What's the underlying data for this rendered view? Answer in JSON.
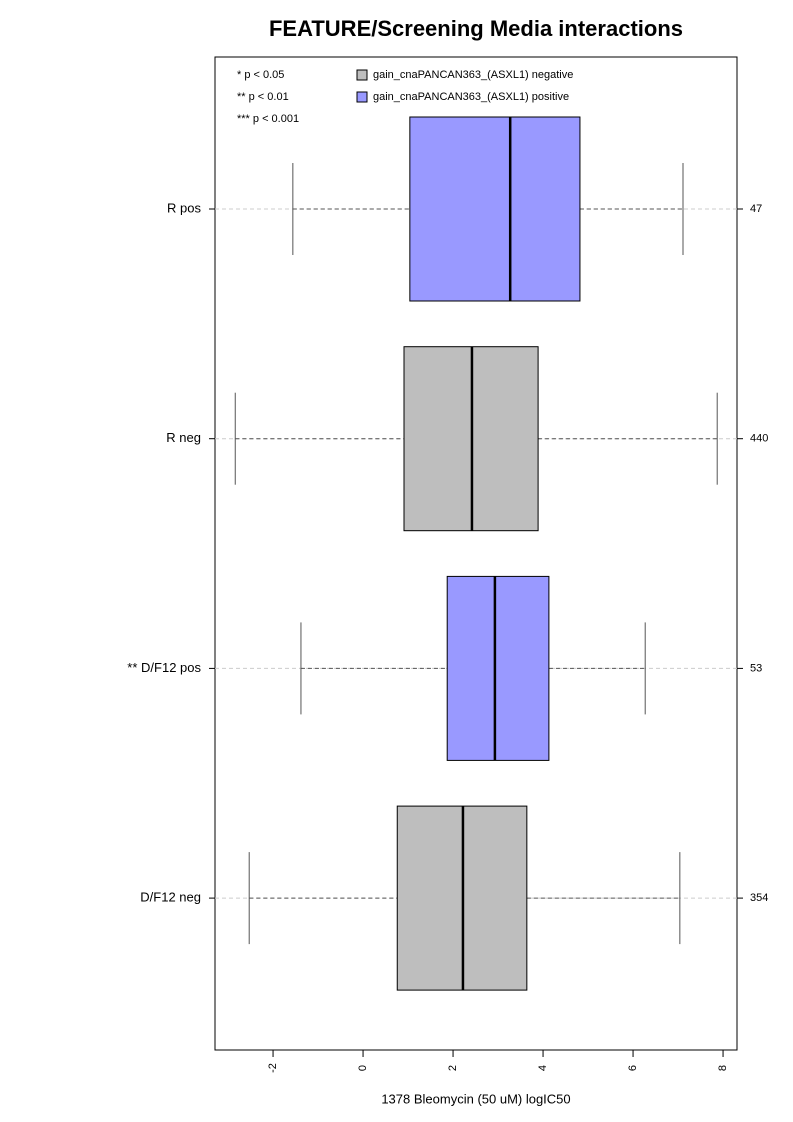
{
  "chart_data": {
    "type": "box",
    "title": "FEATURE/Screening Media interactions",
    "xlabel": "1378 Bleomycin (50 uM) logIC50",
    "categories": [
      "R pos",
      "R neg",
      "** D/F12 pos",
      "D/F12 neg"
    ],
    "series": [
      {
        "name": "gain_cnaPANCAN363_(ASXL1) negative",
        "color": "#bebebe",
        "min": [
          null,
          -2.84,
          null,
          -2.53
        ],
        "q1": [
          null,
          0.91,
          null,
          0.76
        ],
        "median": [
          null,
          2.42,
          null,
          2.22
        ],
        "q3": [
          null,
          3.89,
          null,
          3.64
        ],
        "max": [
          null,
          7.87,
          null,
          7.04
        ],
        "n": [
          null,
          440,
          null,
          354
        ]
      },
      {
        "name": "gain_cnaPANCAN363_(ASXL1) positive",
        "color": "#9999ff",
        "min": [
          -1.56,
          null,
          -1.38,
          null
        ],
        "q1": [
          1.04,
          null,
          1.87,
          null
        ],
        "median": [
          3.27,
          null,
          2.93,
          null
        ],
        "q3": [
          4.82,
          null,
          4.13,
          null
        ],
        "max": [
          7.11,
          null,
          6.27,
          null
        ],
        "n": [
          47,
          null,
          53,
          null
        ]
      }
    ],
    "legend_notes": [
      "* p < 0.05",
      "** p < 0.01",
      "*** p < 0.001"
    ],
    "xlim": [
      -3.29,
      8.31
    ],
    "xticks": [
      -2,
      0,
      2,
      4,
      6,
      8
    ],
    "grid": true
  }
}
